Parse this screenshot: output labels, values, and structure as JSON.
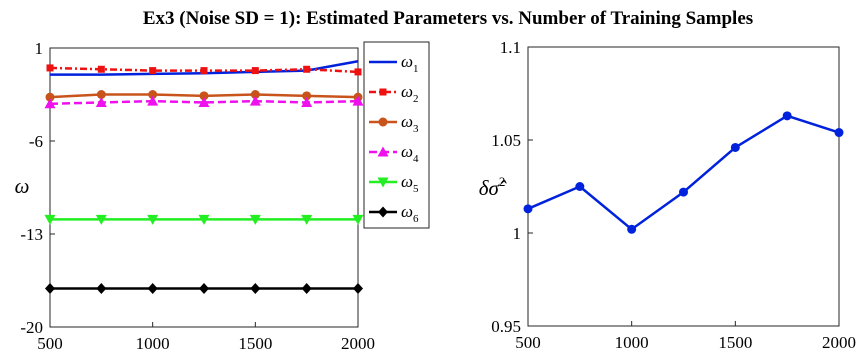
{
  "title": "Ex3 (Noise SD = 1): Estimated Parameters vs. Number of Training Samples",
  "chart_data": [
    {
      "type": "line",
      "ylabel": "ω",
      "xlabel": "",
      "xlim": [
        500,
        2000
      ],
      "ylim": [
        -20,
        1
      ],
      "x_ticks": [
        "500",
        "1000",
        "1500",
        "2000"
      ],
      "y_ticks": [
        "1",
        "-6",
        "-13",
        "-20"
      ],
      "legend_position": "top-right",
      "x": [
        500,
        750,
        1000,
        1250,
        1500,
        1750,
        2000
      ],
      "series": [
        {
          "name": "ω1",
          "label_base": "ω",
          "label_sub": "1",
          "color": "#0022dd",
          "marker": "none",
          "dash": "solid",
          "values": [
            -1.0,
            -1.0,
            -0.95,
            -0.9,
            -0.8,
            -0.7,
            0.0
          ]
        },
        {
          "name": "ω2",
          "label_base": "ω",
          "label_sub": "2",
          "color": "#ee1111",
          "marker": "square",
          "dash": "dashdot",
          "values": [
            -0.5,
            -0.6,
            -0.7,
            -0.7,
            -0.7,
            -0.6,
            -0.8
          ]
        },
        {
          "name": "ω3",
          "label_base": "ω",
          "label_sub": "3",
          "color": "#c8531b",
          "marker": "circle",
          "dash": "solid",
          "values": [
            -2.7,
            -2.5,
            -2.5,
            -2.6,
            -2.5,
            -2.6,
            -2.7
          ]
        },
        {
          "name": "ω4",
          "label_base": "ω",
          "label_sub": "4",
          "color": "#ee11ee",
          "marker": "triangle",
          "dash": "dashed",
          "values": [
            -3.2,
            -3.1,
            -3.0,
            -3.1,
            -3.0,
            -3.1,
            -3.0
          ]
        },
        {
          "name": "ω5",
          "label_base": "ω",
          "label_sub": "5",
          "color": "#22ee22",
          "marker": "triangle-down",
          "dash": "solid",
          "values": [
            -11.9,
            -11.9,
            -11.9,
            -11.9,
            -11.9,
            -11.9,
            -11.9
          ]
        },
        {
          "name": "ω6",
          "label_base": "ω",
          "label_sub": "6",
          "color": "#000000",
          "marker": "diamond",
          "dash": "solid",
          "values": [
            -17.1,
            -17.1,
            -17.1,
            -17.1,
            -17.1,
            -17.1,
            -17.1
          ]
        }
      ]
    },
    {
      "type": "line",
      "ylabel_base": "δ",
      "ylabel_hat": "σ̂",
      "ylabel_exp": "2",
      "xlabel": "",
      "xlim": [
        500,
        2000
      ],
      "ylim": [
        0.95,
        1.1
      ],
      "x_ticks": [
        "500",
        "1000",
        "1500",
        "2000"
      ],
      "y_ticks": [
        "1.1",
        "1.05",
        "1",
        "0.95"
      ],
      "x": [
        500,
        750,
        1000,
        1250,
        1500,
        1750,
        2000
      ],
      "series": [
        {
          "color": "#0022dd",
          "marker": "circle",
          "values": [
            1.013,
            1.025,
            1.002,
            1.022,
            1.046,
            1.063,
            1.054
          ]
        }
      ]
    }
  ]
}
